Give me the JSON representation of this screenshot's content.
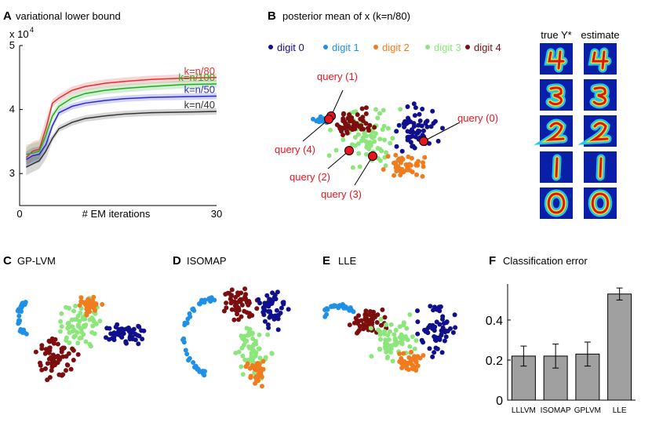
{
  "colors": {
    "digit0": "#10108c",
    "digit1": "#1e90e6",
    "digit2": "#f07c1e",
    "digit3": "#8ce67c",
    "digit4": "#7c0e0e",
    "query": "#e8141e",
    "bar": "#a0a0a0"
  },
  "panelA": {
    "label": "A",
    "title": "variational lower bound",
    "y_multiplier": "x 10",
    "y_exponent": "4"
  },
  "panelB": {
    "label": "B",
    "title": "posterior mean of x (k=n/80)",
    "legend": [
      "digit 0",
      "digit 1",
      "digit 2",
      "digit 3",
      "digit 4"
    ],
    "queries": [
      "query (0)",
      "query (1)",
      "query (2)",
      "query (3)",
      "query (4)"
    ],
    "col_true": "true Y*",
    "col_est": "estimate",
    "digit_rows": [
      "4",
      "3",
      "2",
      "1",
      "0"
    ]
  },
  "panelC": {
    "label": "C",
    "title": "GP-LVM"
  },
  "panelD": {
    "label": "D",
    "title": "ISOMAP"
  },
  "panelE": {
    "label": "E",
    "title": "LLE"
  },
  "panelF": {
    "label": "F",
    "title": "Classification error"
  },
  "chart_data": [
    {
      "type": "line",
      "title": "variational lower bound",
      "xlabel": "# EM iterations",
      "ylabel": "",
      "xlim": [
        0,
        30
      ],
      "ylim": [
        2.5,
        5
      ],
      "xticks": [
        "0",
        "30"
      ],
      "yticks": [
        "3",
        "4",
        "5"
      ],
      "x": [
        1,
        2,
        3,
        4,
        5,
        6,
        8,
        10,
        13,
        16,
        20,
        25,
        30
      ],
      "series": [
        {
          "name": "k=n/80",
          "color": "#e03030",
          "band": 0.06,
          "values": [
            3.25,
            3.35,
            3.38,
            3.7,
            4.1,
            4.18,
            4.3,
            4.36,
            4.41,
            4.44,
            4.47,
            4.49,
            4.5
          ]
        },
        {
          "name": "k=n/100",
          "color": "#22aa22",
          "band": 0.06,
          "values": [
            3.3,
            3.32,
            3.35,
            3.6,
            3.9,
            4.05,
            4.18,
            4.25,
            4.3,
            4.33,
            4.36,
            4.39,
            4.4
          ]
        },
        {
          "name": "k=n/50",
          "color": "#2a2acc",
          "band": 0.05,
          "values": [
            3.22,
            3.28,
            3.3,
            3.45,
            3.75,
            3.95,
            4.05,
            4.1,
            4.14,
            4.17,
            4.19,
            4.2,
            4.21
          ]
        },
        {
          "name": "k=n/40",
          "color": "#333333",
          "band": 0.05,
          "values": [
            3.1,
            3.15,
            3.2,
            3.35,
            3.55,
            3.7,
            3.8,
            3.86,
            3.9,
            3.93,
            3.95,
            3.96,
            3.97
          ]
        }
      ]
    },
    {
      "type": "bar",
      "title": "Classification error",
      "categories": [
        "LLLVM",
        "ISOMAP",
        "GPLVM",
        "LLE"
      ],
      "values": [
        0.22,
        0.22,
        0.23,
        0.53
      ],
      "errors": [
        0.05,
        0.06,
        0.06,
        0.03
      ],
      "ylim": [
        0,
        0.58
      ],
      "yticks": [
        0,
        0.2,
        0.4
      ]
    }
  ]
}
